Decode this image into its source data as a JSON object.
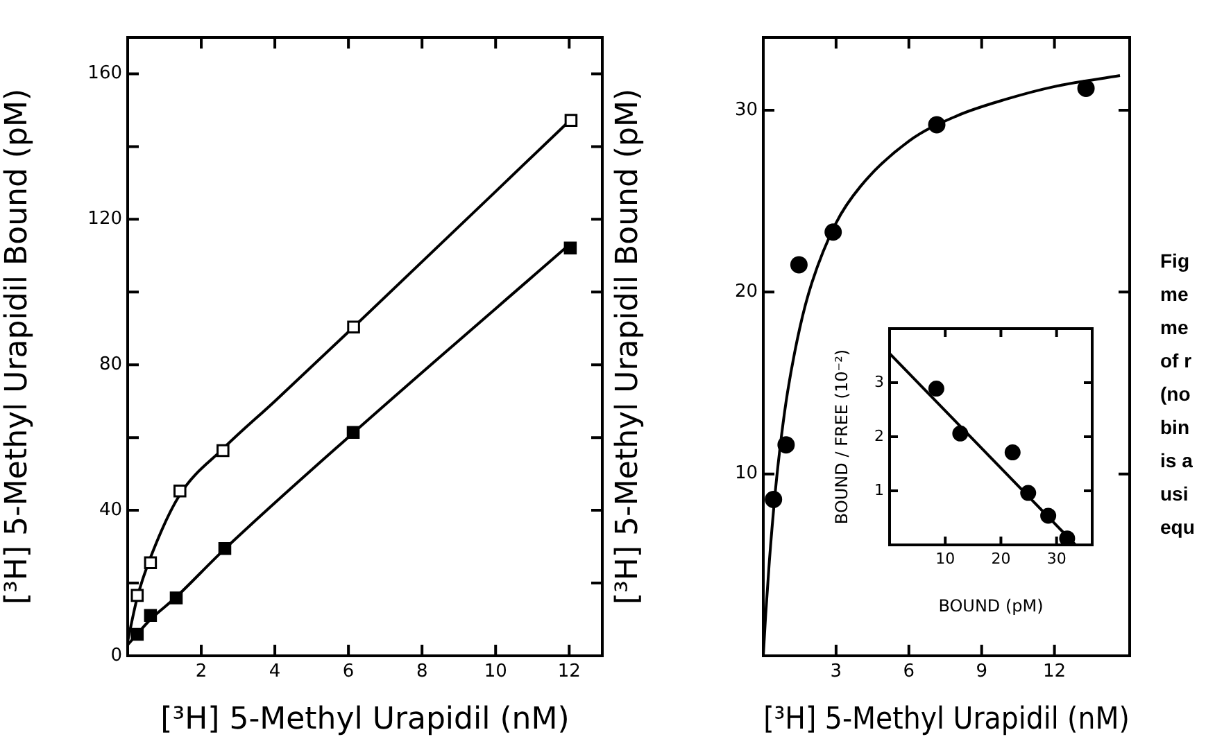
{
  "chart_data": [
    {
      "type": "scatter",
      "xlabel": "[³H] 5-Methyl Urapidil (nM)",
      "ylabel": "[³H] 5-Methyl Urapidil Bound (pM)",
      "xlim": [
        0,
        12.9
      ],
      "ylim": [
        0,
        170
      ],
      "xticks": [
        2,
        4,
        6,
        8,
        10,
        12
      ],
      "yticks": [
        0,
        {
          "value": 20,
          "label": null
        },
        40,
        {
          "value": 60,
          "label": null
        },
        80,
        {
          "value": 100,
          "label": null
        },
        120,
        {
          "value": 140,
          "label": null
        },
        160
      ],
      "legend": false,
      "series": [
        {
          "type": "scatter",
          "marker": "square",
          "color": "#ffffff",
          "x": [
            0.26,
            0.62,
            1.42,
            2.59,
            6.14,
            12.05
          ],
          "values": [
            16.6,
            25.6,
            45.3,
            56.4,
            90.4,
            147.2
          ]
        },
        {
          "type": "scatter",
          "marker": "square",
          "color": "#000000",
          "x": [
            0.26,
            0.62,
            1.32,
            2.64,
            6.13,
            12.03
          ],
          "values": [
            5.9,
            11.1,
            15.9,
            29.5,
            61.4,
            112.1
          ]
        },
        {
          "type": "line",
          "marker": "none",
          "color": "#000000",
          "x": [
            0,
            0.26,
            0.62,
            1.4,
            2.6,
            4,
            6.1,
            12
          ],
          "values": [
            4,
            16,
            27,
            44,
            57,
            70,
            90,
            147
          ]
        },
        {
          "type": "line",
          "marker": "none",
          "color": "#000000",
          "x": [
            0,
            0.26,
            0.62,
            1.3,
            2.6,
            6.1,
            12
          ],
          "values": [
            3,
            6,
            10,
            16,
            29,
            61,
            113
          ]
        }
      ]
    },
    {
      "type": "scatter",
      "xlabel": "[³H] 5-Methyl Urapidil (nM)",
      "ylabel": "[³H] 5-Methyl Urapidil Bound (pM)",
      "xlim": [
        0,
        15.1
      ],
      "ylim": [
        0,
        34
      ],
      "xticks": [
        3,
        6,
        9,
        12
      ],
      "yticks": [
        10,
        20,
        30
      ],
      "legend": false,
      "annotations": [
        "Fig",
        "me",
        "me",
        "of r",
        "(no",
        "bin",
        "is a",
        "usi",
        "equ"
      ],
      "series": [
        {
          "type": "scatter",
          "marker": "circle",
          "color": "#000000",
          "x": [
            0.42,
            0.94,
            1.47,
            2.88,
            7.15,
            13.3
          ],
          "values": [
            8.6,
            11.6,
            21.5,
            23.3,
            29.2,
            31.2
          ]
        },
        {
          "type": "line",
          "marker": "none",
          "color": "#000000",
          "x": [
            0,
            0.1,
            0.25,
            0.5,
            0.75,
            1,
            1.5,
            2,
            3,
            4,
            6,
            8,
            10,
            12,
            14.7
          ],
          "values": [
            0,
            2.3,
            5.2,
            9.1,
            12.1,
            14.5,
            18.0,
            20.5,
            23.8,
            25.8,
            28.3,
            29.7,
            30.6,
            31.3,
            31.9
          ]
        }
      ]
    },
    {
      "type": "scatter",
      "xlabel": "BOUND (pM)",
      "ylabel": "BOUND / FREE (10⁻²)",
      "xlim": [
        0,
        36.4
      ],
      "ylim": [
        0,
        4
      ],
      "xticks": [
        10,
        20,
        30
      ],
      "yticks": [
        1,
        2,
        3
      ],
      "legend": false,
      "series": [
        {
          "type": "scatter",
          "marker": "circle",
          "color": "#000000",
          "x": [
            8.4,
            12.7,
            22.1,
            24.9,
            28.5,
            31.9
          ],
          "values": [
            2.89,
            2.06,
            1.71,
            0.96,
            0.54,
            0.12
          ]
        },
        {
          "type": "line",
          "marker": "none",
          "color": "#000000",
          "x": [
            0,
            33.4
          ],
          "values": [
            3.54,
            0
          ]
        }
      ]
    }
  ]
}
